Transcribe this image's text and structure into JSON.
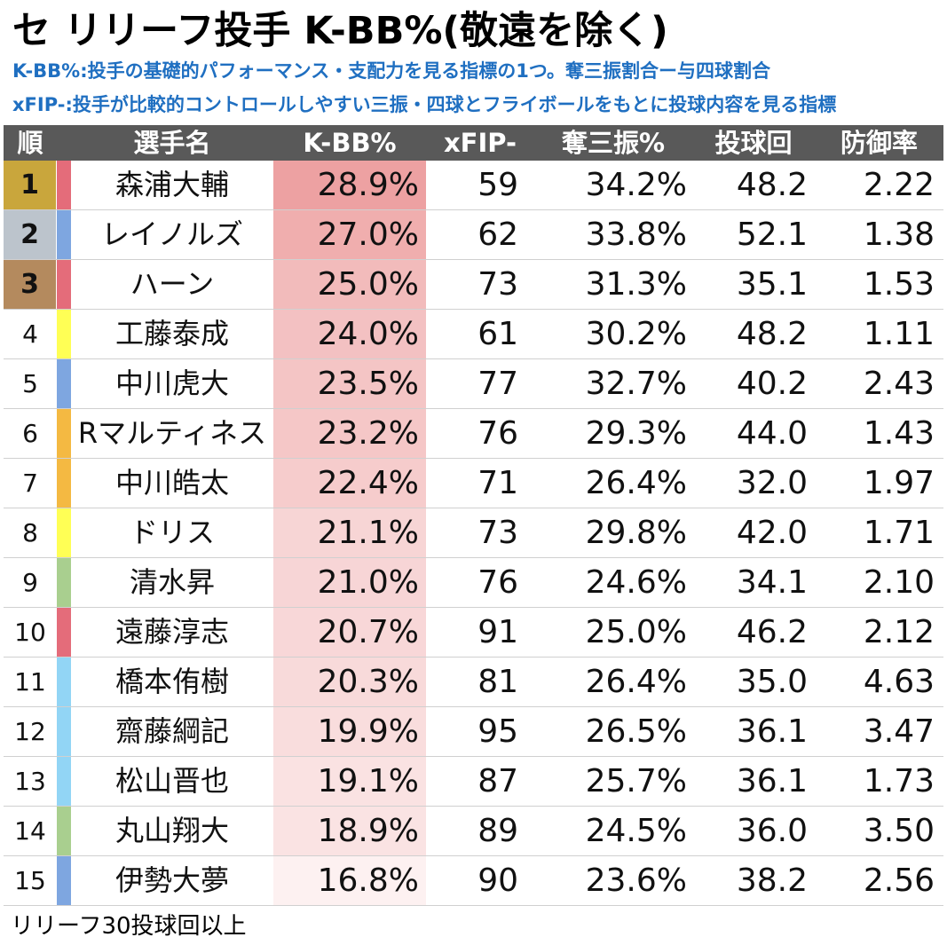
{
  "title": "セ リリーフ投手 K-BB%(敬遠を除く)",
  "subtitle_1": "K-BB%:投手の基礎的パフォーマンス・支配力を見る指標の1つ。奪三振割合ー与四球割合",
  "subtitle_2": "xFIP-:投手が比較的コントロールしやすい三振・四球とフライボールをもとに投球内容を見る指標",
  "columns": {
    "rank": "順",
    "name": "選手名",
    "kbb": "K-BB%",
    "xfip": "xFIP-",
    "k_rate": "奪三振%",
    "ip": "投球回",
    "era": "防御率"
  },
  "colors": {
    "header_bg": "#595959",
    "subtitle": "#1f6fc1",
    "rank_gold": "#c9a63c",
    "rank_silver": "#bcc4cc",
    "rank_bronze": "#b48a5e",
    "kbb_heat_max": "#eda1a2",
    "kbb_heat_min": "#fdf1f1",
    "team_swallows": "#7ea6e0",
    "team_carp": "#e46c7a",
    "team_tigers": "#ffff55",
    "team_giants": "#f4b942",
    "team_dragons": "#92d5f5",
    "team_baystars": "#a9cf8f"
  },
  "rows": [
    {
      "rank": "1",
      "medal": "gold",
      "team_color": "#e46c7a",
      "name": "森浦大輔",
      "kbb": "28.9%",
      "kbb_value": 28.9,
      "xfip": "59",
      "k_rate": "34.2%",
      "ip": "48.2",
      "era": "2.22"
    },
    {
      "rank": "2",
      "medal": "silver",
      "team_color": "#7ea6e0",
      "name": "レイノルズ",
      "kbb": "27.0%",
      "kbb_value": 27.0,
      "xfip": "62",
      "k_rate": "33.8%",
      "ip": "52.1",
      "era": "1.38"
    },
    {
      "rank": "3",
      "medal": "bronze",
      "team_color": "#e46c7a",
      "name": "ハーン",
      "kbb": "25.0%",
      "kbb_value": 25.0,
      "xfip": "73",
      "k_rate": "31.3%",
      "ip": "35.1",
      "era": "1.53"
    },
    {
      "rank": "4",
      "medal": "",
      "team_color": "#ffff55",
      "name": "工藤泰成",
      "kbb": "24.0%",
      "kbb_value": 24.0,
      "xfip": "61",
      "k_rate": "30.2%",
      "ip": "48.2",
      "era": "1.11"
    },
    {
      "rank": "5",
      "medal": "",
      "team_color": "#7ea6e0",
      "name": "中川虎大",
      "kbb": "23.5%",
      "kbb_value": 23.5,
      "xfip": "77",
      "k_rate": "32.7%",
      "ip": "40.2",
      "era": "2.43"
    },
    {
      "rank": "6",
      "medal": "",
      "team_color": "#f4b942",
      "name": "Rマルティネス",
      "kbb": "23.2%",
      "kbb_value": 23.2,
      "xfip": "76",
      "k_rate": "29.3%",
      "ip": "44.0",
      "era": "1.43"
    },
    {
      "rank": "7",
      "medal": "",
      "team_color": "#f4b942",
      "name": "中川皓太",
      "kbb": "22.4%",
      "kbb_value": 22.4,
      "xfip": "71",
      "k_rate": "26.4%",
      "ip": "32.0",
      "era": "1.97"
    },
    {
      "rank": "8",
      "medal": "",
      "team_color": "#ffff55",
      "name": "ドリス",
      "kbb": "21.1%",
      "kbb_value": 21.1,
      "xfip": "73",
      "k_rate": "29.8%",
      "ip": "42.0",
      "era": "1.71"
    },
    {
      "rank": "9",
      "medal": "",
      "team_color": "#a9cf8f",
      "name": "清水昇",
      "kbb": "21.0%",
      "kbb_value": 21.0,
      "xfip": "76",
      "k_rate": "24.6%",
      "ip": "34.1",
      "era": "2.10"
    },
    {
      "rank": "10",
      "medal": "",
      "team_color": "#e46c7a",
      "name": "遠藤淳志",
      "kbb": "20.7%",
      "kbb_value": 20.7,
      "xfip": "91",
      "k_rate": "25.0%",
      "ip": "46.2",
      "era": "2.12"
    },
    {
      "rank": "11",
      "medal": "",
      "team_color": "#92d5f5",
      "name": "橋本侑樹",
      "kbb": "20.3%",
      "kbb_value": 20.3,
      "xfip": "81",
      "k_rate": "26.4%",
      "ip": "35.0",
      "era": "4.63"
    },
    {
      "rank": "12",
      "medal": "",
      "team_color": "#92d5f5",
      "name": "齋藤綱記",
      "kbb": "19.9%",
      "kbb_value": 19.9,
      "xfip": "95",
      "k_rate": "26.5%",
      "ip": "36.1",
      "era": "3.47"
    },
    {
      "rank": "13",
      "medal": "",
      "team_color": "#92d5f5",
      "name": "松山晋也",
      "kbb": "19.1%",
      "kbb_value": 19.1,
      "xfip": "87",
      "k_rate": "25.7%",
      "ip": "36.1",
      "era": "1.73"
    },
    {
      "rank": "14",
      "medal": "",
      "team_color": "#a9cf8f",
      "name": "丸山翔大",
      "kbb": "18.9%",
      "kbb_value": 18.9,
      "xfip": "89",
      "k_rate": "24.5%",
      "ip": "36.0",
      "era": "3.50"
    },
    {
      "rank": "15",
      "medal": "",
      "team_color": "#7ea6e0",
      "name": "伊勢大夢",
      "kbb": "16.8%",
      "kbb_value": 16.8,
      "xfip": "90",
      "k_rate": "23.6%",
      "ip": "38.2",
      "era": "2.56"
    }
  ],
  "footnote": "リリーフ30投球回以上"
}
